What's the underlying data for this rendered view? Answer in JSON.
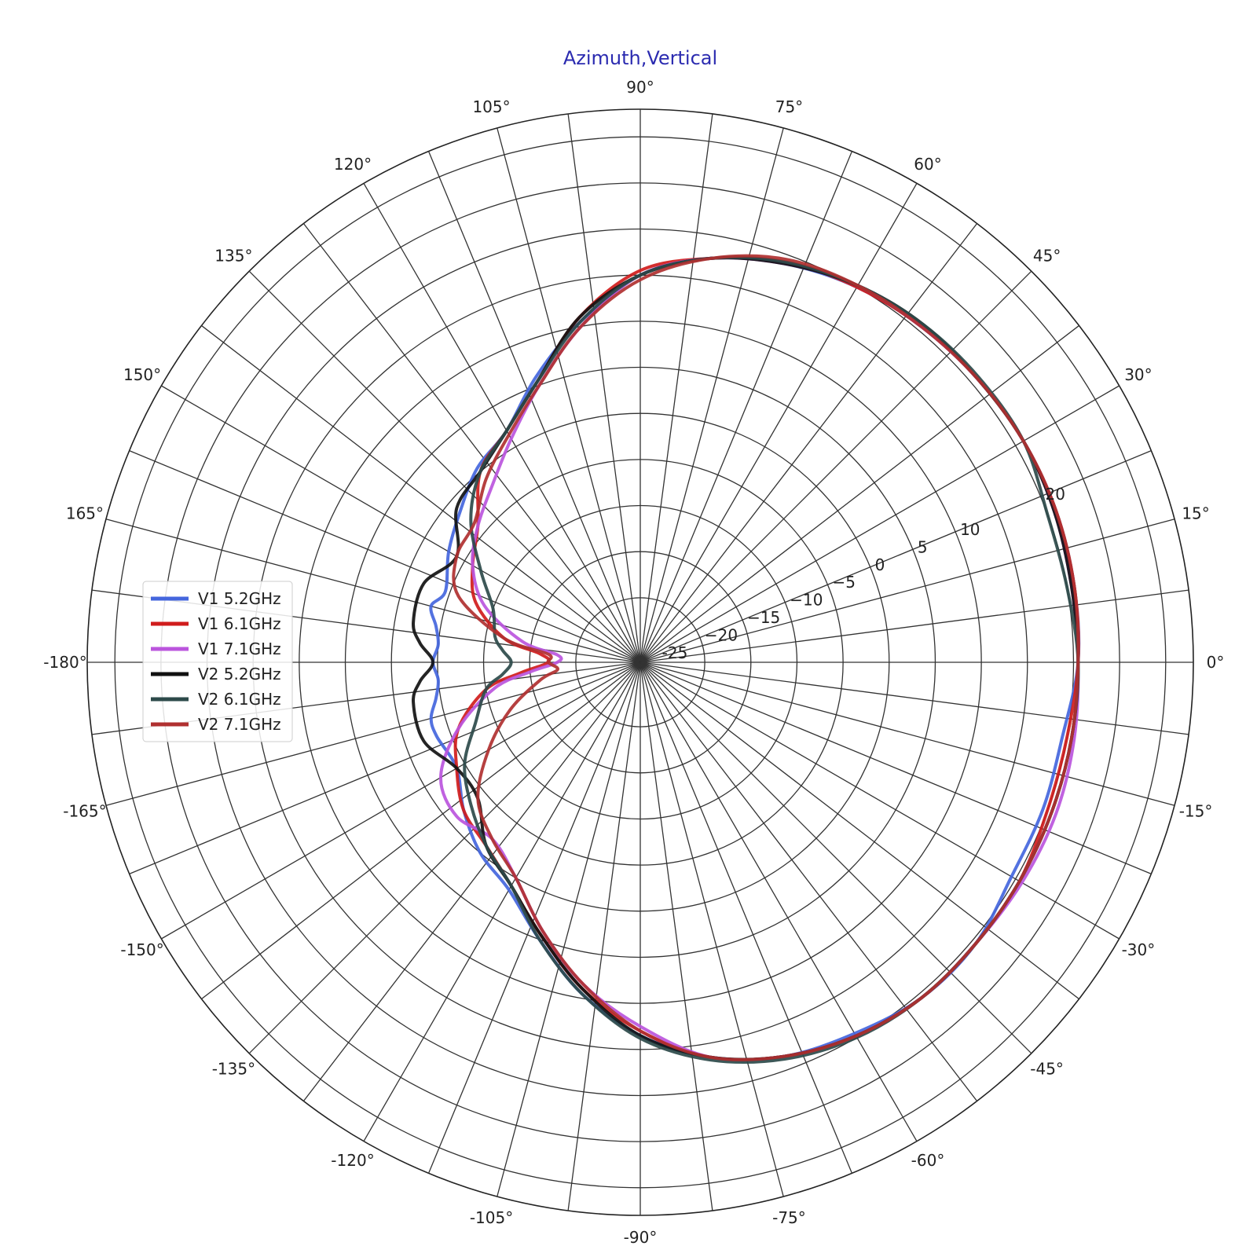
{
  "chart_data": {
    "type": "line",
    "projection": "polar",
    "title": "Azimuth,Vertical",
    "title_color": "#2b2bb0",
    "theta_direction": "counterclockwise",
    "theta_zero": "right",
    "angle_ticks": [
      {
        "angle": 0,
        "label": "0°"
      },
      {
        "angle": 15,
        "label": "15°"
      },
      {
        "angle": 30,
        "label": "30°"
      },
      {
        "angle": 45,
        "label": "45°"
      },
      {
        "angle": 60,
        "label": "60°"
      },
      {
        "angle": 75,
        "label": "75°"
      },
      {
        "angle": 90,
        "label": "90°"
      },
      {
        "angle": 105,
        "label": "105°"
      },
      {
        "angle": 120,
        "label": "120°"
      },
      {
        "angle": 135,
        "label": "135°"
      },
      {
        "angle": 150,
        "label": "150°"
      },
      {
        "angle": 165,
        "label": "165°"
      },
      {
        "angle": 180,
        "label": "-180°"
      },
      {
        "angle": -165,
        "label": "-165°"
      },
      {
        "angle": -150,
        "label": "-150°"
      },
      {
        "angle": -135,
        "label": "-135°"
      },
      {
        "angle": -120,
        "label": "-120°"
      },
      {
        "angle": -105,
        "label": "-105°"
      },
      {
        "angle": -90,
        "label": "-90°"
      },
      {
        "angle": -75,
        "label": "-75°"
      },
      {
        "angle": -60,
        "label": "-60°"
      },
      {
        "angle": -45,
        "label": "-45°"
      },
      {
        "angle": -30,
        "label": "-30°"
      },
      {
        "angle": -15,
        "label": "-15°"
      }
    ],
    "rlim": [
      -27,
      33
    ],
    "radial_gridlines": [
      -20,
      -15,
      -10,
      -5,
      0,
      5,
      10,
      15,
      20,
      25,
      30
    ],
    "radial_tick_labels": [
      {
        "value": -25,
        "label": "-25"
      },
      {
        "value": -20,
        "label": "−20"
      },
      {
        "value": -15,
        "label": "−15"
      },
      {
        "value": -10,
        "label": "−10"
      },
      {
        "value": -5,
        "label": "−5"
      },
      {
        "value": 0,
        "label": "0"
      },
      {
        "value": 5,
        "label": "5"
      },
      {
        "value": 10,
        "label": "10"
      },
      {
        "value": 20,
        "label": "20"
      }
    ],
    "radial_label_angle": 22.5,
    "angular_gridlines_every_deg": 7.5,
    "grid": true,
    "legend_position": "left",
    "series": [
      {
        "name": "V1 5.2GHz",
        "color": "#4466dd",
        "stroke": 4,
        "theta": [
          0,
          10,
          20,
          30,
          40,
          50,
          60,
          70,
          80,
          90,
          100,
          110,
          120,
          130,
          140,
          150,
          160,
          165,
          170,
          175,
          180,
          -175,
          -170,
          -165,
          -160,
          -150,
          -140,
          -130,
          -120,
          -110,
          -100,
          -90,
          -80,
          -70,
          -60,
          -50,
          -40,
          -30,
          -20,
          -10
        ],
        "r": [
          20.5,
          20.8,
          21.0,
          21.0,
          20.8,
          20.5,
          20.0,
          19.0,
          17.5,
          15.0,
          10.5,
          6.0,
          2.0,
          0.5,
          -1.5,
          -3.0,
          -4.5,
          -3.5,
          -4.5,
          -5.0,
          -4.5,
          -5.0,
          -4.5,
          -3.5,
          -3.5,
          -4.0,
          -2.0,
          0.0,
          1.5,
          5.0,
          9.5,
          13.5,
          16.5,
          18.5,
          19.5,
          20.5,
          20.5,
          19.5,
          19.5,
          19.5
        ]
      },
      {
        "name": "V1 6.1GHz",
        "color": "#d01c1c",
        "stroke": 4,
        "theta": [
          0,
          10,
          20,
          30,
          40,
          50,
          60,
          70,
          80,
          90,
          100,
          110,
          120,
          130,
          140,
          150,
          160,
          170,
          175,
          180,
          -175,
          -170,
          -160,
          -150,
          -140,
          -130,
          -120,
          -110,
          -100,
          -90,
          -80,
          -70,
          -60,
          -50,
          -40,
          -30,
          -20,
          -10
        ],
        "r": [
          20.5,
          20.8,
          21.0,
          21.0,
          20.8,
          20.5,
          20.0,
          19.2,
          17.5,
          15.5,
          11.0,
          5.5,
          2.0,
          0.0,
          -4.0,
          -6.0,
          -8.0,
          -12.0,
          -16.0,
          -17.0,
          -14.0,
          -10.0,
          -6.0,
          -4.0,
          -2.0,
          -1.0,
          1.0,
          4.5,
          9.0,
          13.0,
          16.5,
          18.5,
          19.8,
          20.5,
          20.5,
          20.5,
          20.0,
          20.0
        ]
      },
      {
        "name": "V1 7.1GHz",
        "color": "#bb55dd",
        "stroke": 4,
        "theta": [
          0,
          10,
          20,
          30,
          40,
          50,
          60,
          70,
          80,
          90,
          100,
          110,
          120,
          130,
          140,
          150,
          160,
          170,
          175,
          180,
          -175,
          -170,
          -160,
          -150,
          -140,
          -130,
          -120,
          -110,
          -100,
          -90,
          -80,
          -70,
          -60,
          -50,
          -40,
          -30,
          -20,
          -10
        ],
        "r": [
          20.5,
          20.5,
          20.8,
          21.0,
          20.8,
          20.5,
          20.2,
          19.0,
          17.5,
          15.0,
          10.0,
          5.0,
          1.0,
          -2.0,
          -4.0,
          -6.0,
          -9.0,
          -14.0,
          -18.0,
          -18.0,
          -15.0,
          -11.0,
          -6.0,
          -2.0,
          -1.0,
          -2.0,
          0.0,
          4.0,
          8.5,
          12.5,
          16.5,
          18.5,
          19.8,
          20.5,
          20.5,
          20.8,
          21.0,
          20.8
        ]
      },
      {
        "name": "V2 5.2GHz",
        "color": "#111111",
        "stroke": 4,
        "theta": [
          0,
          10,
          20,
          30,
          40,
          50,
          60,
          70,
          80,
          90,
          100,
          110,
          120,
          130,
          140,
          150,
          160,
          170,
          175,
          180,
          -175,
          -170,
          -160,
          -150,
          -140,
          -130,
          -120,
          -110,
          -100,
          -90,
          -80,
          -70,
          -60,
          -50,
          -40,
          -30,
          -20,
          -10
        ],
        "r": [
          20.5,
          20.5,
          20.8,
          21.0,
          20.8,
          20.8,
          20.2,
          19.0,
          17.5,
          15.0,
          11.0,
          5.5,
          2.0,
          0.0,
          -1.0,
          -4.0,
          -2.0,
          -2.0,
          -3.0,
          -4.5,
          -3.0,
          -2.0,
          -2.0,
          -4.0,
          -4.0,
          -1.0,
          1.0,
          4.5,
          9.0,
          13.5,
          16.5,
          18.5,
          19.8,
          20.5,
          20.5,
          20.5,
          20.5,
          20.5
        ]
      },
      {
        "name": "V2 6.1GHz",
        "color": "#2d4a4a",
        "stroke": 4,
        "theta": [
          0,
          10,
          20,
          30,
          40,
          50,
          60,
          70,
          80,
          90,
          100,
          110,
          120,
          130,
          140,
          150,
          160,
          170,
          175,
          180,
          -175,
          -170,
          -160,
          -150,
          -140,
          -130,
          -120,
          -110,
          -100,
          -90,
          -80,
          -70,
          -60,
          -50,
          -40,
          -30,
          -20,
          -10
        ],
        "r": [
          20.5,
          20.0,
          20.0,
          21.0,
          21.0,
          20.8,
          20.2,
          19.2,
          17.5,
          15.0,
          10.5,
          5.5,
          2.0,
          0.0,
          -3.0,
          -7.0,
          -10.0,
          -11.0,
          -12.0,
          -13.0,
          -12.0,
          -10.0,
          -8.0,
          -5.0,
          -3.0,
          -1.0,
          1.0,
          5.0,
          9.5,
          13.8,
          16.8,
          18.8,
          20.0,
          20.5,
          20.5,
          20.5,
          20.5,
          20.5
        ]
      },
      {
        "name": "V2 7.1GHz",
        "color": "#b03030",
        "stroke": 4,
        "theta": [
          0,
          10,
          20,
          30,
          40,
          50,
          60,
          70,
          80,
          90,
          100,
          110,
          120,
          130,
          140,
          150,
          160,
          170,
          175,
          180,
          -175,
          -170,
          -160,
          -150,
          -140,
          -130,
          -120,
          -110,
          -100,
          -90,
          -80,
          -70,
          -60,
          -50,
          -40,
          -30,
          -20,
          -10
        ],
        "r": [
          20.5,
          20.8,
          21.0,
          21.0,
          20.8,
          20.5,
          20.2,
          19.5,
          17.5,
          14.5,
          10.0,
          5.0,
          1.5,
          -1.0,
          -3.5,
          -4.0,
          -6.0,
          -12.0,
          -17.0,
          -17.0,
          -18.0,
          -16.0,
          -12.0,
          -8.0,
          -4.0,
          -2.0,
          0.0,
          4.0,
          8.5,
          13.0,
          16.5,
          18.5,
          19.8,
          20.5,
          20.5,
          20.5,
          20.5,
          20.5
        ]
      }
    ]
  }
}
